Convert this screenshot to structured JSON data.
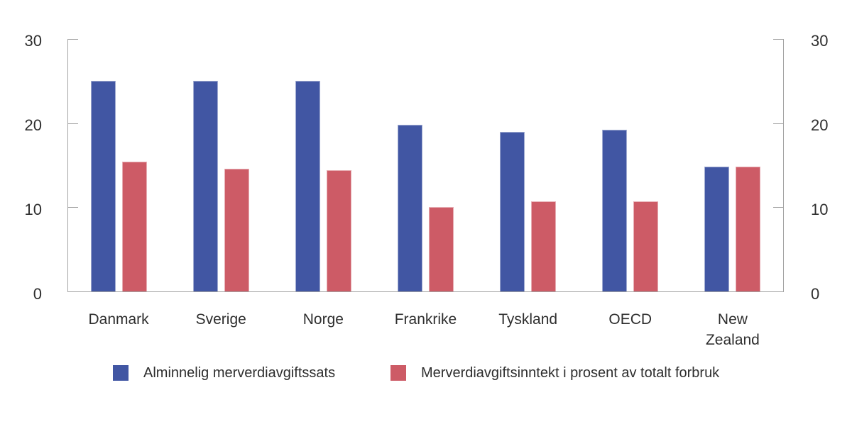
{
  "chart_data": {
    "type": "bar",
    "title": "",
    "categories": [
      "Danmark",
      "Sverige",
      "Norge",
      "Frankrike",
      "Tyskland",
      "OECD",
      "New Zealand"
    ],
    "xtick_labels": [
      "Danmark",
      "Sverige",
      "Norge",
      "Frankrike",
      "Tyskland",
      "OECD",
      "New\nZealand"
    ],
    "series": [
      {
        "name": "Alminnelig merverdiavgiftssats",
        "color": "#4156a3",
        "values": [
          25,
          25,
          25,
          19.8,
          19,
          19.2,
          14.8
        ]
      },
      {
        "name": "Merverdiavgiftsinntekt i prosent av totalt forbruk",
        "color": "#cd5b66",
        "values": [
          15.4,
          14.6,
          14.4,
          10,
          10.7,
          10.7,
          14.8
        ]
      }
    ],
    "ylim": [
      0,
      30
    ],
    "yticks": [
      0,
      10,
      20,
      30
    ],
    "dual_axis": true,
    "grid": false,
    "legend_position": "bottom",
    "axis_color": "#a3a3a3",
    "text_color": "#2e2e2e",
    "background": "#ffffff"
  }
}
